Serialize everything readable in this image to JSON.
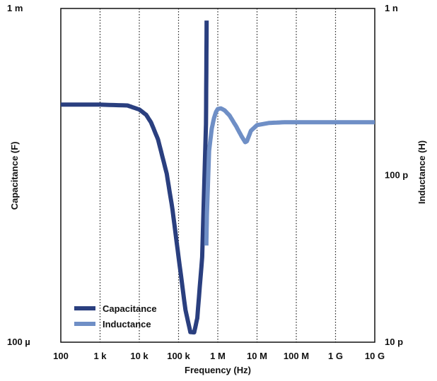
{
  "chart_data": {
    "type": "line",
    "xlabel": "Frequency (Hz)",
    "ylabel_left": "Capacitance (F)",
    "ylabel_right": "Inductance (H)",
    "x_scale": "log",
    "xlim": [
      100,
      10000000000
    ],
    "x_ticks": [
      100,
      1000,
      10000,
      100000,
      1000000,
      10000000,
      100000000,
      1000000000,
      10000000000
    ],
    "x_tick_labels": [
      "100",
      "1 k",
      "10 k",
      "100 k",
      "1 M",
      "10 M",
      "100 M",
      "1 G",
      "10 G"
    ],
    "y_left_scale": "log",
    "y_left_lim": [
      0.0001,
      0.001
    ],
    "y_left_ticks": [
      0.0001,
      0.001
    ],
    "y_left_tick_labels": [
      "100 µ",
      "1 m"
    ],
    "y_right_scale": "log",
    "y_right_lim": [
      1e-11,
      1e-09
    ],
    "y_right_ticks": [
      1e-11,
      1e-10,
      1e-09
    ],
    "y_right_tick_labels": [
      "10 p",
      "100 p",
      "1 n"
    ],
    "grid": "vertical-dotted",
    "legend_position": "bottom-left",
    "series": [
      {
        "name": "Capacitance",
        "axis": "left",
        "color": "#2a3f7f",
        "x": [
          100,
          1000,
          5000,
          10000,
          15000,
          20000,
          30000,
          50000,
          70000,
          100000,
          150000,
          200000,
          250000,
          300000,
          400000,
          500000,
          520000
        ],
        "y": [
          0.000515,
          0.000515,
          0.000512,
          0.000498,
          0.00048,
          0.000455,
          0.000405,
          0.00032,
          0.00025,
          0.00018,
          0.000125,
          0.0001072,
          0.000107,
          0.000118,
          0.00018,
          0.00045,
          0.00092
        ]
      },
      {
        "name": "Inductance",
        "axis": "right",
        "color": "#6f8fc6",
        "x": [
          510000,
          530000,
          600000,
          700000,
          800000,
          900000,
          1000000,
          1200000,
          1500000,
          2000000,
          3000000,
          4000000,
          5000000,
          5500000,
          7000000,
          10000000,
          20000000,
          50000000,
          100000000,
          1000000000,
          10000000000
        ],
        "y": [
          3.8e-11,
          6e-11,
          1.4e-10,
          1.9e-10,
          2.2e-10,
          2.4e-10,
          2.5e-10,
          2.52e-10,
          2.45e-10,
          2.28e-10,
          1.95e-10,
          1.72e-10,
          1.58e-10,
          1.6e-10,
          1.85e-10,
          2e-10,
          2.06e-10,
          2.08e-10,
          2.08e-10,
          2.08e-10,
          2.08e-10
        ]
      }
    ]
  }
}
